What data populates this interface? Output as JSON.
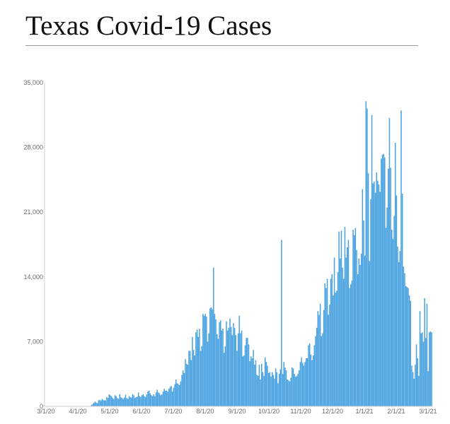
{
  "page": {
    "title": "Texas Covid-19 Cases"
  },
  "chart_data": {
    "type": "bar",
    "title": "Texas Covid-19 Cases",
    "xlabel": "",
    "ylabel": "",
    "ylim": [
      0,
      35000
    ],
    "y_ticks": [
      0,
      7000,
      14000,
      21000,
      28000,
      35000
    ],
    "y_tick_labels": [
      "0",
      "7,000",
      "14,000",
      "21,000",
      "28,000",
      "35,000"
    ],
    "x_ticks": [
      "3/1/20",
      "4/1/20",
      "5/1/20",
      "6/1/20",
      "7/1/20",
      "8/1/20",
      "9/1/20",
      "10/1/20",
      "11/1/20",
      "12/1/20",
      "1/1/21",
      "2/1/21",
      "3/1/21"
    ],
    "grid": false,
    "legend": "none",
    "bar_color": "#4aa3e0",
    "x_start": "3/1/20",
    "x_end": "3/1/21",
    "values": [
      0,
      0,
      0,
      0,
      0,
      0,
      0,
      0,
      0,
      0,
      0,
      0,
      0,
      0,
      0,
      0,
      0,
      0,
      0,
      0,
      0,
      0,
      0,
      0,
      0,
      0,
      0,
      0,
      0,
      0,
      0,
      0,
      0,
      0,
      0,
      0,
      0,
      0,
      50,
      150,
      250,
      400,
      500,
      400,
      350,
      650,
      700,
      600,
      800,
      700,
      650,
      650,
      1000,
      900,
      1300,
      1200,
      1100,
      900,
      800,
      1200,
      1100,
      900,
      800,
      1300,
      1000,
      900,
      800,
      950,
      1250,
      900,
      800,
      1100,
      1000,
      950,
      1300,
      1200,
      900,
      1000,
      1050,
      1500,
      1100,
      1000,
      1200,
      1300,
      1100,
      1000,
      1300,
      1600,
      1700,
      1400,
      1200,
      1100,
      1300,
      1100,
      1500,
      1800,
      1500,
      1400,
      1200,
      1300,
      1600,
      1900,
      1700,
      1700,
      1600,
      1900,
      2100,
      2200,
      1600,
      2000,
      2400,
      2900,
      2500,
      2400,
      2300,
      2700,
      3400,
      3900,
      3600,
      5100,
      4600,
      4500,
      6000,
      6000,
      5000,
      7500,
      6100,
      5500,
      8000,
      8300,
      7500,
      8400,
      6000,
      6500,
      10000,
      9800,
      10000,
      9700,
      7000,
      7900,
      10600,
      10700,
      10500,
      15000,
      10000,
      9400,
      7800,
      7300,
      9100,
      9300,
      8200,
      8400,
      5800,
      6500,
      9200,
      8200,
      8500,
      9500,
      8600,
      7700,
      9000,
      8500,
      7700,
      6000,
      7900,
      9800,
      7900,
      8200,
      5400,
      5500,
      6600,
      7400,
      7400,
      6700,
      4900,
      5400,
      5200,
      6100,
      4500,
      5000,
      3400,
      3300,
      4500,
      2900,
      4600,
      3700,
      3300,
      5300,
      4800,
      4400,
      3600,
      3700,
      3200,
      3700,
      3400,
      3000,
      4100,
      3700,
      2500,
      3500,
      4000,
      18000,
      3500,
      4800,
      4200,
      3900,
      2900,
      2800,
      2700,
      3100,
      4200,
      4100,
      3500,
      3200,
      3300,
      3500,
      3900,
      4800,
      5300,
      4700,
      4400,
      4800,
      5200,
      5200,
      6600,
      6800,
      5600,
      5000,
      5500,
      6600,
      7600,
      8500,
      10300,
      9900,
      11100,
      7600,
      7900,
      10400,
      13300,
      12800,
      13800,
      9900,
      11000,
      13800,
      14300,
      12000,
      16100,
      12300,
      12500,
      14500,
      18900,
      16000,
      19000,
      15000,
      13800,
      19400,
      16100,
      17200,
      18000,
      12800,
      13200,
      13600,
      19100,
      18500,
      19300,
      16900,
      14300,
      16000,
      15300,
      16500,
      23500,
      20100,
      16300,
      33000,
      32200,
      25200,
      15700,
      22400,
      31500,
      24100,
      24300,
      23100,
      25300,
      24400,
      24000,
      23200,
      26800,
      27200,
      27300,
      26900,
      19300,
      21500,
      25700,
      31200,
      25800,
      19100,
      18100,
      20600,
      28500,
      22800,
      17300,
      15600,
      16800,
      32000,
      23000,
      15100,
      14400,
      13000,
      12900,
      12800,
      12000,
      11400,
      4400,
      3700,
      3000,
      4500,
      6700,
      5200,
      3300,
      10300,
      7900,
      8000,
      7000,
      11700,
      7400,
      11100,
      3800,
      8000,
      8100,
      8000
    ]
  }
}
